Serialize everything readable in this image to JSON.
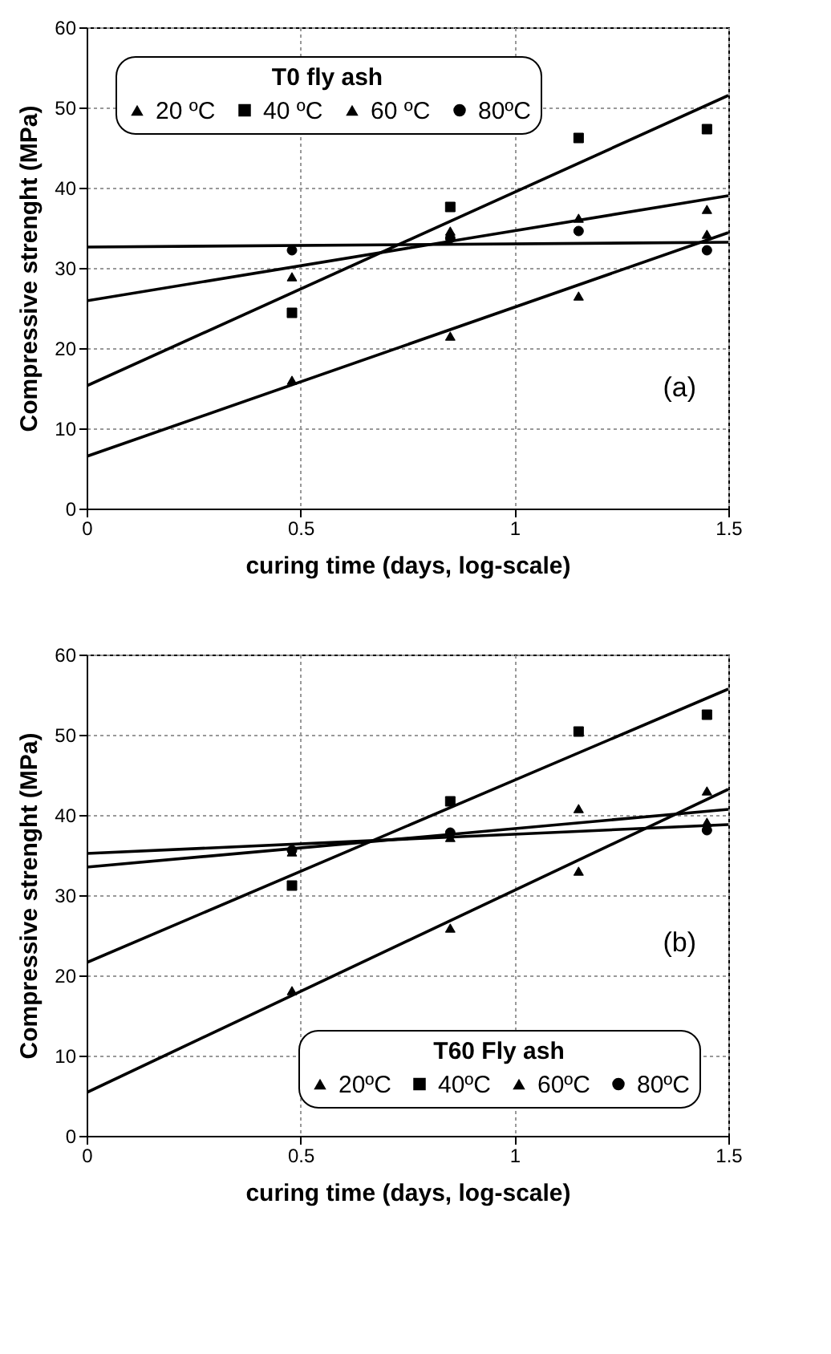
{
  "chart_data": [
    {
      "type": "scatter",
      "xlabel": "curing time (days, log-scale)",
      "ylabel": "Compressive strenght (MPa)",
      "legend_title": "T0 fly ash",
      "legend": "top left",
      "grid": true,
      "annotations": [
        "(a)"
      ],
      "xlim": [
        0,
        1.5
      ],
      "xticks": [
        0,
        0.5,
        1,
        1.5
      ],
      "ylim": [
        0,
        60
      ],
      "yticks": [
        0,
        10,
        20,
        30,
        40,
        50,
        60
      ],
      "series": [
        {
          "name": "20 ºC",
          "type": "scatter",
          "marker": "triangle",
          "color": "#000000",
          "x": [
            0.48,
            0.85,
            1.15,
            1.45
          ],
          "values": [
            16,
            21.5,
            26.5,
            34.2
          ]
        },
        {
          "name": "40 ºC",
          "type": "scatter",
          "marker": "square",
          "color": "#000000",
          "x": [
            0.48,
            0.85,
            1.15,
            1.45
          ],
          "values": [
            24.4,
            37.6,
            46.2,
            47.3
          ]
        },
        {
          "name": "60 ºC",
          "type": "scatter",
          "marker": "triangle",
          "color": "#000000",
          "x": [
            0.48,
            0.85,
            1.15,
            1.45
          ],
          "values": [
            28.9,
            34.6,
            36.2,
            37.3
          ]
        },
        {
          "name": "80ºC",
          "type": "scatter",
          "marker": "circle",
          "color": "#000000",
          "x": [
            0.48,
            0.85,
            1.15,
            1.45
          ],
          "values": [
            32.2,
            33.7,
            34.6,
            32.2
          ]
        },
        {
          "type": "line",
          "color": "#000000",
          "x": [
            0,
            1.5
          ],
          "values": [
            6.5,
            34.4
          ]
        },
        {
          "type": "line",
          "color": "#000000",
          "x": [
            0,
            1.5
          ],
          "values": [
            15.3,
            51.5
          ]
        },
        {
          "type": "line",
          "color": "#000000",
          "x": [
            0,
            1.5
          ],
          "values": [
            25.9,
            39
          ]
        },
        {
          "type": "line",
          "color": "#000000",
          "x": [
            0,
            1.5
          ],
          "values": [
            32.6,
            33.2
          ]
        }
      ]
    },
    {
      "type": "scatter",
      "xlabel": "curing time (days, log-scale)",
      "ylabel": "Compressive strenght (MPa)",
      "legend_title": "T60 Fly ash",
      "legend": "bottom right",
      "grid": true,
      "annotations": [
        "(b)"
      ],
      "xlim": [
        0,
        1.5
      ],
      "xticks": [
        0,
        0.5,
        1,
        1.5
      ],
      "ylim": [
        0,
        60
      ],
      "yticks": [
        0,
        10,
        20,
        30,
        40,
        50,
        60
      ],
      "series": [
        {
          "name": "20ºC",
          "type": "scatter",
          "marker": "triangle",
          "color": "#000000",
          "x": [
            0.48,
            0.85,
            1.15,
            1.45
          ],
          "values": [
            18.1,
            25.9,
            33,
            43
          ]
        },
        {
          "name": "40ºC",
          "type": "scatter",
          "marker": "square",
          "color": "#000000",
          "x": [
            0.48,
            0.85,
            1.15,
            1.45
          ],
          "values": [
            31.2,
            41.7,
            50.4,
            52.5
          ]
        },
        {
          "name": "60ºC",
          "type": "scatter",
          "marker": "triangle",
          "color": "#000000",
          "x": [
            0.48,
            0.85,
            1.15,
            1.45
          ],
          "values": [
            35.4,
            37.2,
            40.8,
            39.1
          ]
        },
        {
          "name": "80ºC",
          "type": "scatter",
          "marker": "circle",
          "color": "#000000",
          "x": [
            0.48,
            0.85,
            1.15,
            1.45
          ],
          "values": [
            35.6,
            37.8,
            null,
            38.1
          ]
        },
        {
          "type": "line",
          "color": "#000000",
          "x": [
            0,
            1.5
          ],
          "values": [
            5.4,
            43.2
          ]
        },
        {
          "type": "line",
          "color": "#000000",
          "x": [
            0,
            1.5
          ],
          "values": [
            21.6,
            55.7
          ]
        },
        {
          "type": "line",
          "color": "#000000",
          "x": [
            0,
            1.5
          ],
          "values": [
            33.5,
            40.7
          ]
        },
        {
          "type": "line",
          "color": "#000000",
          "x": [
            0,
            1.5
          ],
          "values": [
            35.2,
            38.8
          ]
        }
      ]
    }
  ]
}
